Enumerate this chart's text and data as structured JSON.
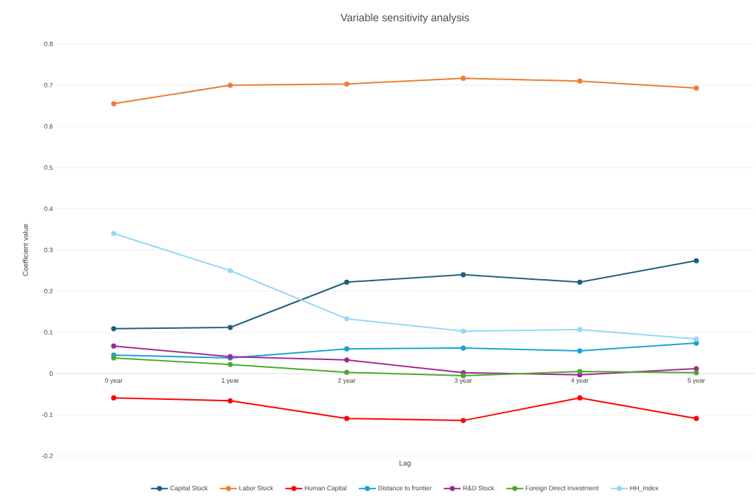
{
  "chart_data": {
    "type": "line",
    "title": "Variable sensitivity analysis",
    "xlabel": "Lag",
    "ylabel": "Coefficient value",
    "categories": [
      "0 year",
      "1 year",
      "2 year",
      "3 year",
      "4 year",
      "5 year"
    ],
    "series": [
      {
        "name": "Capital Stock",
        "color": "#1f5f7f",
        "values": [
          0.109,
          0.112,
          0.222,
          0.24,
          0.222,
          0.274
        ]
      },
      {
        "name": "Labor Stock",
        "color": "#ed7d31",
        "values": [
          0.655,
          0.7,
          0.703,
          0.717,
          0.71,
          0.693
        ]
      },
      {
        "name": "Human Capital",
        "color": "#ff0000",
        "values": [
          -0.059,
          -0.066,
          -0.109,
          -0.114,
          -0.059,
          -0.109
        ]
      },
      {
        "name": "Distance to frontier",
        "color": "#1aa0d8",
        "values": [
          0.045,
          0.038,
          0.06,
          0.062,
          0.055,
          0.074
        ]
      },
      {
        "name": "R&D Stock",
        "color": "#a02b93",
        "values": [
          0.067,
          0.041,
          0.033,
          0.002,
          -0.003,
          0.012
        ]
      },
      {
        "name": "Foreign Direct Investment",
        "color": "#4ea72e",
        "values": [
          0.038,
          0.022,
          0.003,
          -0.005,
          0.005,
          0.002
        ]
      },
      {
        "name": "HH_Index",
        "color": "#95d8f5",
        "values": [
          0.34,
          0.25,
          0.133,
          0.103,
          0.107,
          0.084
        ]
      }
    ],
    "ylim": [
      -0.2,
      0.8
    ],
    "yticks": [
      -0.2,
      -0.1,
      0,
      0.1,
      0.2,
      0.3,
      0.4,
      0.5,
      0.6,
      0.7,
      0.8
    ],
    "grid": "y",
    "legend": "bottom",
    "marker": "circle",
    "line_style": "solid"
  }
}
